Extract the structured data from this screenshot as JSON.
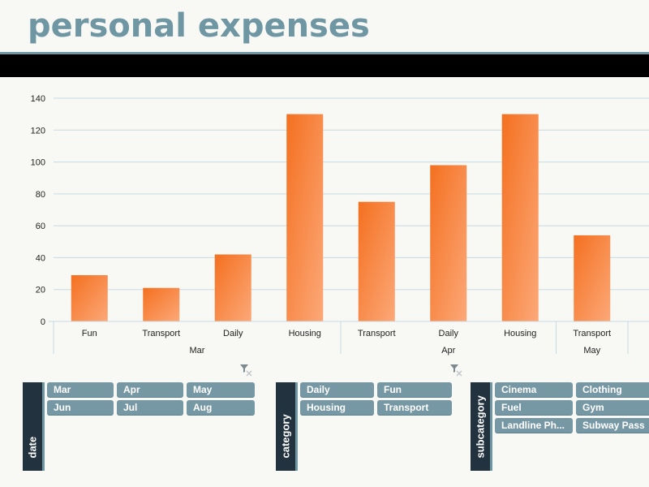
{
  "title": "personal expenses",
  "chart_data": {
    "type": "bar",
    "title": "",
    "xlabel": "",
    "ylabel": "",
    "ylim": [
      0,
      140
    ],
    "yticks": [
      0,
      20,
      40,
      60,
      80,
      100,
      120,
      140
    ],
    "grid": true,
    "legend": "none",
    "bar_color": "#f68a45",
    "groups": [
      {
        "label": "Mar",
        "categories": [
          "Fun",
          "Transport",
          "Daily",
          "Housing"
        ],
        "values": [
          29,
          21,
          42,
          130
        ]
      },
      {
        "label": "Apr",
        "categories": [
          "Transport",
          "Daily",
          "Housing"
        ],
        "values": [
          75,
          98,
          130
        ]
      },
      {
        "label": "May",
        "categories": [
          "Transport"
        ],
        "values": [
          54
        ]
      }
    ]
  },
  "slicers": [
    {
      "name": "date",
      "columns": 3,
      "items": [
        "Mar",
        "Apr",
        "May",
        "Jun",
        "Jul",
        "Aug"
      ]
    },
    {
      "name": "category",
      "columns": 2,
      "items": [
        "Daily",
        "Fun",
        "Housing",
        "Transport"
      ]
    },
    {
      "name": "subcategory",
      "columns": 2,
      "items": [
        "Cinema",
        "Clothing",
        "Fuel",
        "Gym",
        "Landline Ph...",
        "Subway Pass"
      ]
    }
  ],
  "colors": {
    "accent": "#6f96a3",
    "slicer_header": "#22323f",
    "slicer_item": "#7698a4",
    "bar": "#f68a45"
  }
}
